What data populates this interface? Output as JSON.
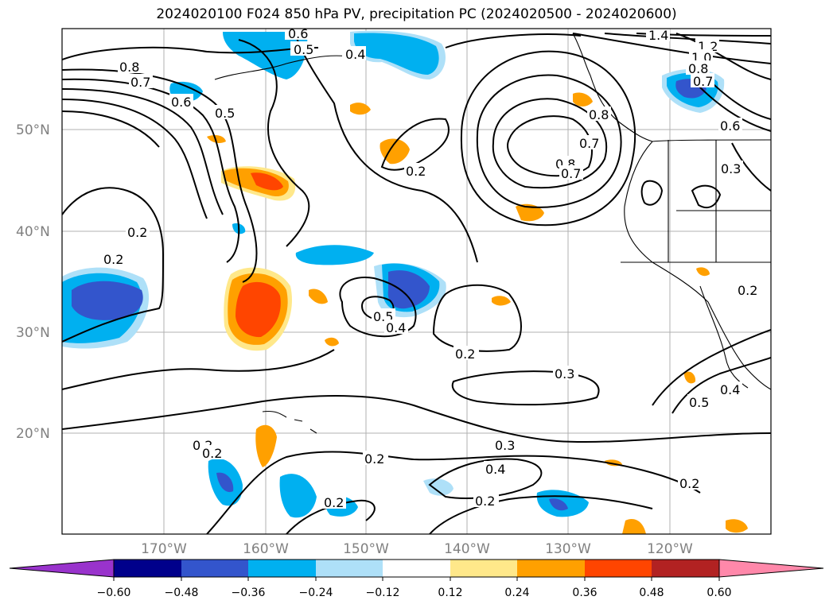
{
  "title": "2024020100 F024 850 hPa PV, precipitation PC (2024020500 - 2024020600)",
  "map": {
    "lon_labels": [
      "170°W",
      "160°W",
      "150°W",
      "140°W",
      "130°W",
      "120°W"
    ],
    "lat_labels": [
      "50°N",
      "40°N",
      "30°N",
      "20°N"
    ],
    "contour_labels": [
      "0.6",
      "0.5",
      "0.4",
      "1.4",
      "1.2",
      "1.0",
      "0.8",
      "0.7",
      "0.8",
      "0.7",
      "0.6",
      "0.5",
      "0.2",
      "0.8",
      "0.7",
      "0.6",
      "0.8",
      "0.7",
      "0.3",
      "0.2",
      "0.2",
      "0.2",
      "0.5",
      "0.4",
      "0.2",
      "0.3",
      "0.2",
      "0.3",
      "0.4",
      "0.2",
      "0.2",
      "0.5",
      "0.4",
      "0.2",
      "0.2",
      "0.2"
    ],
    "colors": {
      "coast": "#000000",
      "grid": "#b0b0b0"
    }
  },
  "colorbar": {
    "ticks": [
      "−0.60",
      "−0.48",
      "−0.36",
      "−0.24",
      "−0.12",
      "0.12",
      "0.24",
      "0.36",
      "0.48",
      "0.60"
    ],
    "colors": [
      "#9933cc",
      "#00008b",
      "#3355cc",
      "#00b0f0",
      "#aee0f8",
      "#ffffff",
      "#ffe88a",
      "#ffa000",
      "#ff4500",
      "#b22222",
      "#ff88aa"
    ]
  }
}
